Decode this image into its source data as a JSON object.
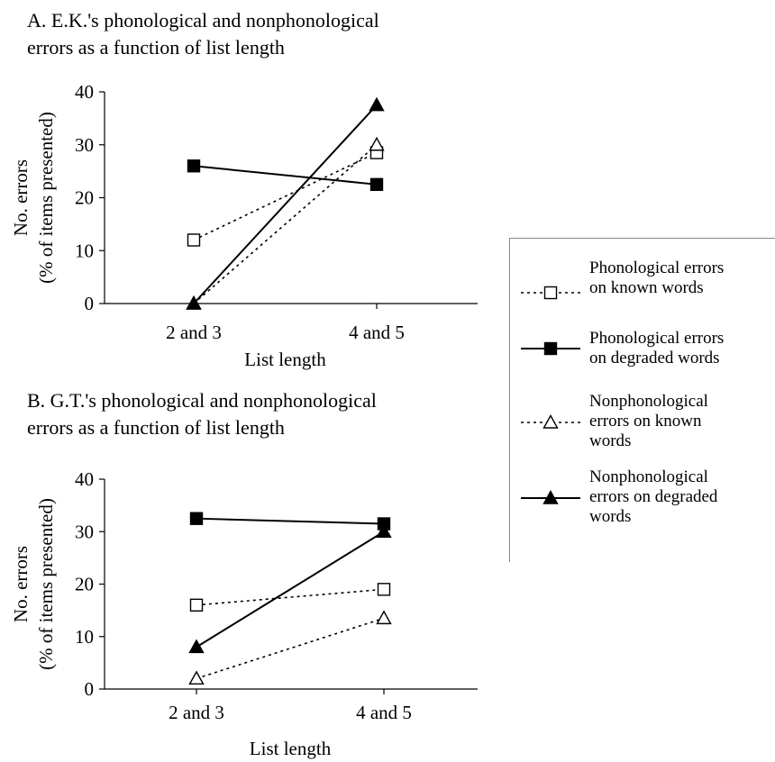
{
  "chart_data": [
    {
      "type": "line",
      "title": "A. E.K.'s phonological and nonphonological\nerrors as a function of list length",
      "xlabel": "List length",
      "ylabel_line1": "No. errors",
      "ylabel_line2": "(% of items presented)",
      "categories": [
        "2 and 3",
        "4 and 5"
      ],
      "ylim": [
        0,
        40
      ],
      "yticks": [
        "0",
        "10",
        "20",
        "30",
        "40"
      ],
      "series": [
        {
          "key": "pk",
          "values": [
            12,
            28.5
          ]
        },
        {
          "key": "pd",
          "values": [
            26,
            22.5
          ]
        },
        {
          "key": "nk",
          "values": [
            0,
            30
          ]
        },
        {
          "key": "nd",
          "values": [
            0,
            37.5
          ]
        }
      ]
    },
    {
      "type": "line",
      "title": "B. G.T.'s phonological and nonphonological\nerrors as a function of list length",
      "xlabel": "List length",
      "ylabel_line1": "No. errors",
      "ylabel_line2": "(% of items presented)",
      "categories": [
        "2 and 3",
        "4 and 5"
      ],
      "ylim": [
        0,
        40
      ],
      "yticks": [
        "0",
        "10",
        "20",
        "30",
        "40"
      ],
      "series": [
        {
          "key": "pk",
          "values": [
            16,
            19
          ]
        },
        {
          "key": "pd",
          "values": [
            32.5,
            31.5
          ]
        },
        {
          "key": "nk",
          "values": [
            2,
            13.5
          ]
        },
        {
          "key": "nd",
          "values": [
            8,
            30
          ]
        }
      ]
    }
  ],
  "legend": [
    {
      "key": "pk",
      "label": "Phonological errors\non known words",
      "marker": "open-square",
      "line": "dotted"
    },
    {
      "key": "pd",
      "label": "Phonological errors\non degraded words",
      "marker": "filled-square",
      "line": "solid"
    },
    {
      "key": "nk",
      "label": "Nonphonological\nerrors on known\nwords",
      "marker": "open-triangle",
      "line": "dotted"
    },
    {
      "key": "nd",
      "label": "Nonphonological\nerrors on degraded\nwords",
      "marker": "filled-triangle",
      "line": "solid"
    }
  ]
}
